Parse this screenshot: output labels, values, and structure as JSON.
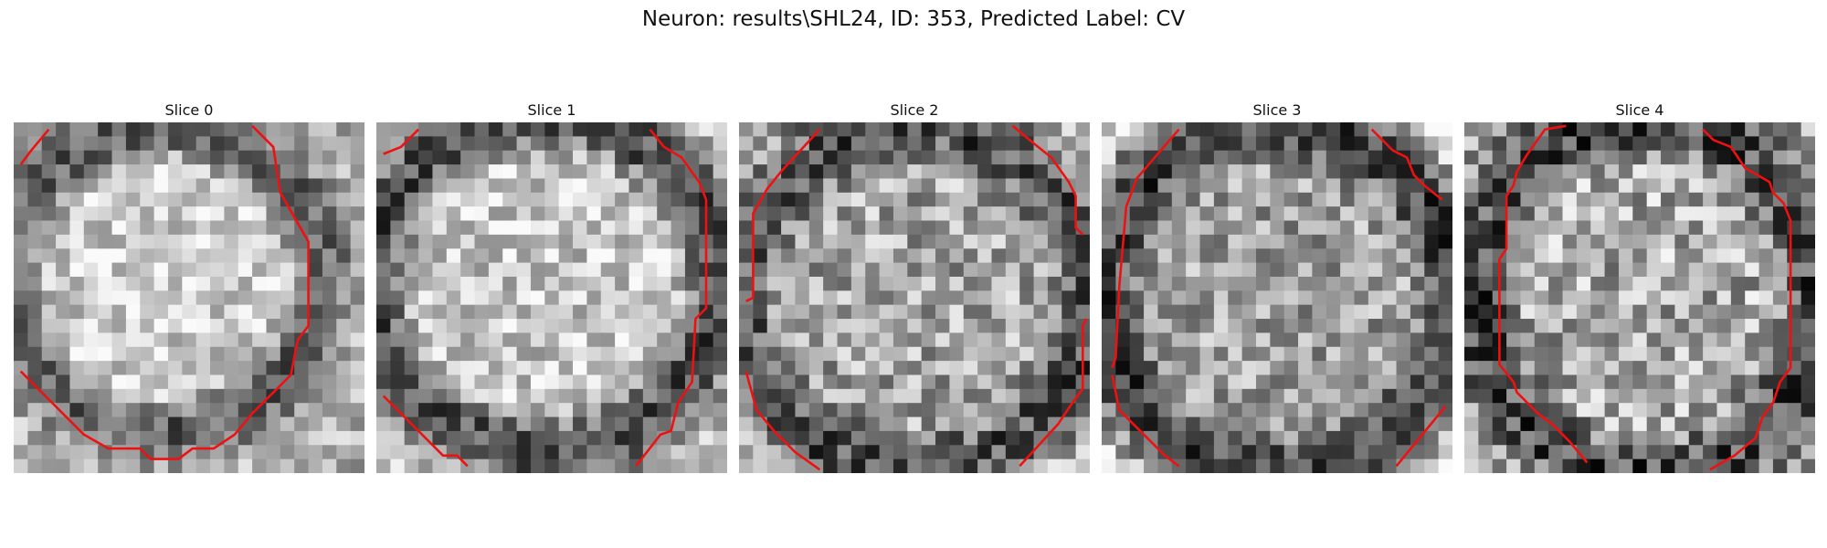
{
  "figure": {
    "title": "Neuron: results\\SHL24, ID: 353, Predicted Label: CV",
    "contour_color": "#ee1111",
    "image_colormap": "gray"
  },
  "slices": [
    {
      "title": "Slice 0"
    },
    {
      "title": "Slice 1"
    },
    {
      "title": "Slice 2"
    },
    {
      "title": "Slice 3"
    },
    {
      "title": "Slice 4"
    }
  ]
}
